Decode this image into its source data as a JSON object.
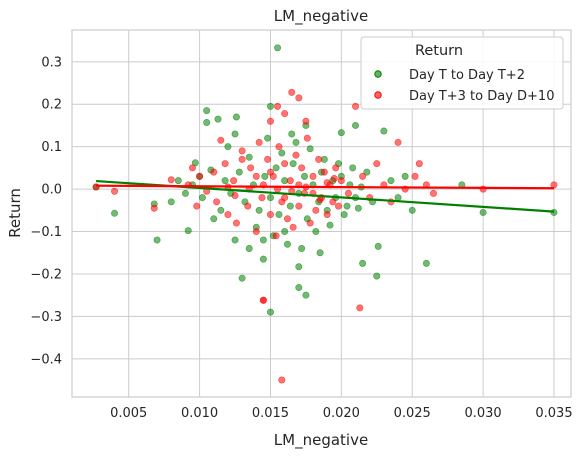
{
  "chart_data": {
    "type": "scatter",
    "title": "LM_negative",
    "xlabel": "LM_negative",
    "ylabel": "Return",
    "xlim": [
      0.001,
      0.0362
    ],
    "ylim": [
      -0.49,
      0.375
    ],
    "xticks": [
      0.005,
      0.01,
      0.015,
      0.02,
      0.025,
      0.03,
      0.035
    ],
    "xtick_labels": [
      "0.005",
      "0.010",
      "0.015",
      "0.020",
      "0.025",
      "0.030",
      "0.035"
    ],
    "yticks": [
      0.3,
      0.2,
      0.1,
      0.0,
      -0.1,
      -0.2,
      -0.3,
      -0.4
    ],
    "ytick_labels": [
      "0.3",
      "0.2",
      "0.1",
      "0.0",
      "−0.1",
      "−0.2",
      "−0.3",
      "−0.4"
    ],
    "grid": true,
    "legend": {
      "title": "Return",
      "placement": "top-right"
    },
    "series": [
      {
        "name": "Day T to Day T+2",
        "color": "#008000",
        "regression": {
          "x": [
            0.0027,
            0.035
          ],
          "y": [
            0.019,
            -0.053
          ]
        },
        "points": [
          [
            0.0027,
            0.005
          ],
          [
            0.004,
            -0.057
          ],
          [
            0.0068,
            -0.035
          ],
          [
            0.007,
            -0.12
          ],
          [
            0.0092,
            -0.098
          ],
          [
            0.0097,
            0.062
          ],
          [
            0.0105,
            0.185
          ],
          [
            0.0105,
            0.157
          ],
          [
            0.0113,
            0.165
          ],
          [
            0.0126,
            0.17
          ],
          [
            0.013,
            -0.21
          ],
          [
            0.0145,
            -0.165
          ],
          [
            0.015,
            0.195
          ],
          [
            0.015,
            -0.29
          ],
          [
            0.0155,
            0.333
          ],
          [
            0.017,
            -0.183
          ],
          [
            0.017,
            -0.232
          ],
          [
            0.0175,
            -0.25
          ],
          [
            0.02,
            0.133
          ],
          [
            0.021,
            0.15
          ],
          [
            0.0215,
            -0.175
          ],
          [
            0.0225,
            -0.205
          ],
          [
            0.0226,
            -0.135
          ],
          [
            0.023,
            0.137
          ],
          [
            0.025,
            -0.05
          ],
          [
            0.026,
            -0.175
          ],
          [
            0.0285,
            0.01
          ],
          [
            0.03,
            -0.055
          ],
          [
            0.035,
            -0.055
          ],
          [
            0.0115,
            -0.05
          ],
          [
            0.012,
            0.1
          ],
          [
            0.0125,
            -0.12
          ],
          [
            0.0135,
            0.075
          ],
          [
            0.014,
            -0.09
          ],
          [
            0.0148,
            0.12
          ],
          [
            0.0152,
            -0.11
          ],
          [
            0.0158,
            0.085
          ],
          [
            0.0162,
            -0.13
          ],
          [
            0.0168,
            0.11
          ],
          [
            0.0172,
            -0.14
          ],
          [
            0.0178,
            0.095
          ],
          [
            0.0182,
            -0.1
          ],
          [
            0.0188,
            0.07
          ],
          [
            0.0192,
            -0.085
          ],
          [
            0.0198,
            0.06
          ],
          [
            0.0202,
            -0.06
          ],
          [
            0.0208,
            0.05
          ],
          [
            0.0212,
            -0.045
          ],
          [
            0.0218,
            0.04
          ],
          [
            0.0222,
            -0.03
          ],
          [
            0.0235,
            0.02
          ],
          [
            0.024,
            -0.02
          ],
          [
            0.0245,
            0.03
          ],
          [
            0.01,
            0.03
          ],
          [
            0.0102,
            -0.02
          ],
          [
            0.0108,
            0.045
          ],
          [
            0.011,
            -0.07
          ],
          [
            0.0118,
            0.02
          ],
          [
            0.0122,
            -0.01
          ],
          [
            0.0128,
            0.04
          ],
          [
            0.0132,
            -0.03
          ],
          [
            0.0138,
            0.01
          ],
          [
            0.0142,
            -0.05
          ],
          [
            0.0146,
            0.03
          ],
          [
            0.015,
            -0.02
          ],
          [
            0.0154,
            0.05
          ],
          [
            0.0156,
            -0.06
          ],
          [
            0.016,
            0.02
          ],
          [
            0.0164,
            -0.04
          ],
          [
            0.0166,
            0.06
          ],
          [
            0.017,
            -0.01
          ],
          [
            0.0174,
            0.03
          ],
          [
            0.0176,
            -0.07
          ],
          [
            0.018,
            0.01
          ],
          [
            0.0184,
            -0.03
          ],
          [
            0.0186,
            0.04
          ],
          [
            0.019,
            -0.05
          ],
          [
            0.0194,
            0.02
          ],
          [
            0.0196,
            -0.02
          ],
          [
            0.02,
            0.03
          ],
          [
            0.0204,
            -0.04
          ],
          [
            0.0206,
            0.01
          ],
          [
            0.021,
            -0.02
          ],
          [
            0.0214,
            0.005
          ],
          [
            0.009,
            -0.01
          ],
          [
            0.0085,
            0.02
          ],
          [
            0.008,
            -0.03
          ],
          [
            0.0095,
            0.01
          ],
          [
            0.016,
            -0.1
          ],
          [
            0.0145,
            -0.12
          ],
          [
            0.0135,
            -0.14
          ],
          [
            0.0165,
            0.13
          ],
          [
            0.0175,
            0.15
          ],
          [
            0.0125,
            0.13
          ],
          [
            0.0185,
            -0.15
          ]
        ]
      },
      {
        "name": "Day T+3 to Day D+10",
        "color": "#ff0000",
        "regression": {
          "x": [
            0.0027,
            0.035
          ],
          "y": [
            0.008,
            0.002
          ]
        },
        "points": [
          [
            0.0027,
            0.005
          ],
          [
            0.004,
            -0.005
          ],
          [
            0.0068,
            -0.045
          ],
          [
            0.008,
            0.022
          ],
          [
            0.01,
            0.03
          ],
          [
            0.0115,
            0.115
          ],
          [
            0.013,
            0.07
          ],
          [
            0.0145,
            -0.262
          ],
          [
            0.0145,
            -0.262
          ],
          [
            0.0158,
            -0.45
          ],
          [
            0.0165,
            0.228
          ],
          [
            0.017,
            0.215
          ],
          [
            0.0175,
            0.16
          ],
          [
            0.016,
            0.178
          ],
          [
            0.0155,
            0.195
          ],
          [
            0.015,
            0.16
          ],
          [
            0.021,
            0.195
          ],
          [
            0.0213,
            -0.28
          ],
          [
            0.024,
            0.11
          ],
          [
            0.0252,
            0.03
          ],
          [
            0.0255,
            0.06
          ],
          [
            0.03,
            0.0
          ],
          [
            0.035,
            0.01
          ],
          [
            0.0105,
            -0.005
          ],
          [
            0.011,
            0.04
          ],
          [
            0.0112,
            -0.03
          ],
          [
            0.0118,
            0.06
          ],
          [
            0.012,
            -0.06
          ],
          [
            0.0124,
            0.02
          ],
          [
            0.0126,
            -0.08
          ],
          [
            0.013,
            0.09
          ],
          [
            0.0134,
            -0.04
          ],
          [
            0.0136,
            0.05
          ],
          [
            0.014,
            -0.1
          ],
          [
            0.0142,
            0.11
          ],
          [
            0.0144,
            -0.02
          ],
          [
            0.0148,
            0.07
          ],
          [
            0.015,
            -0.06
          ],
          [
            0.0152,
            0.03
          ],
          [
            0.0154,
            -0.11
          ],
          [
            0.0156,
            0.1
          ],
          [
            0.0158,
            -0.03
          ],
          [
            0.016,
            0.06
          ],
          [
            0.0162,
            -0.07
          ],
          [
            0.0164,
            0.02
          ],
          [
            0.0166,
            -0.09
          ],
          [
            0.0168,
            0.08
          ],
          [
            0.017,
            -0.04
          ],
          [
            0.0172,
            0.05
          ],
          [
            0.0174,
            -0.01
          ],
          [
            0.0176,
            0.12
          ],
          [
            0.0178,
            -0.08
          ],
          [
            0.018,
            0.03
          ],
          [
            0.0182,
            -0.05
          ],
          [
            0.0184,
            0.07
          ],
          [
            0.0186,
            -0.02
          ],
          [
            0.0188,
            0.04
          ],
          [
            0.019,
            -0.06
          ],
          [
            0.0192,
            0.01
          ],
          [
            0.0194,
            -0.03
          ],
          [
            0.0196,
            0.05
          ],
          [
            0.0198,
            -0.04
          ],
          [
            0.02,
            0.02
          ],
          [
            0.0205,
            -0.01
          ],
          [
            0.0215,
            0.03
          ],
          [
            0.022,
            -0.02
          ],
          [
            0.0225,
            0.06
          ],
          [
            0.023,
            0.01
          ],
          [
            0.0235,
            -0.03
          ],
          [
            0.0245,
            0.0
          ],
          [
            0.026,
            0.01
          ],
          [
            0.0265,
            -0.01
          ],
          [
            0.0095,
            0.05
          ],
          [
            0.0098,
            -0.04
          ],
          [
            0.0092,
            0.01
          ],
          [
            0.0135,
            0.0
          ],
          [
            0.0145,
            0.01
          ],
          [
            0.0155,
            0.0
          ],
          [
            0.0165,
            -0.005
          ],
          [
            0.0175,
            0.005
          ],
          [
            0.014,
            0.03
          ],
          [
            0.015,
            0.04
          ],
          [
            0.016,
            -0.02
          ],
          [
            0.017,
            0.01
          ],
          [
            0.018,
            -0.01
          ],
          [
            0.012,
            0.005
          ],
          [
            0.0125,
            -0.015
          ],
          [
            0.019,
            0.015
          ],
          [
            0.0185,
            -0.025
          ],
          [
            0.0195,
            0.025
          ]
        ]
      }
    ]
  }
}
